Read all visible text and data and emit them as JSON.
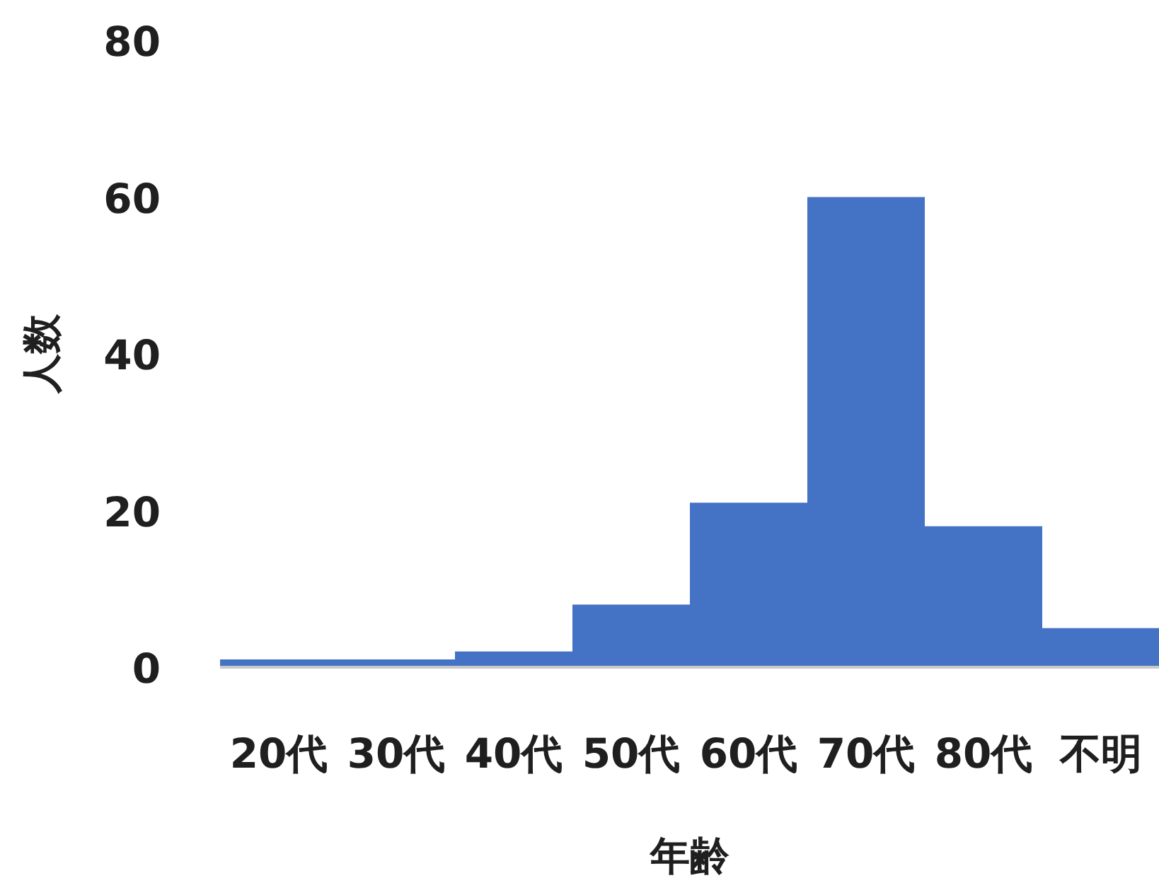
{
  "chart_data": {
    "type": "bar",
    "xlabel": "年齢",
    "ylabel": "人数",
    "categories": [
      "20代",
      "30代",
      "40代",
      "50代",
      "60代",
      "70代",
      "80代",
      "不明"
    ],
    "values": [
      1,
      1,
      2,
      8,
      21,
      60,
      18,
      5
    ],
    "color": "#4472c4",
    "ylim": [
      0,
      80
    ],
    "yticks": [
      0,
      20,
      40,
      60,
      80
    ],
    "grid": false
  }
}
